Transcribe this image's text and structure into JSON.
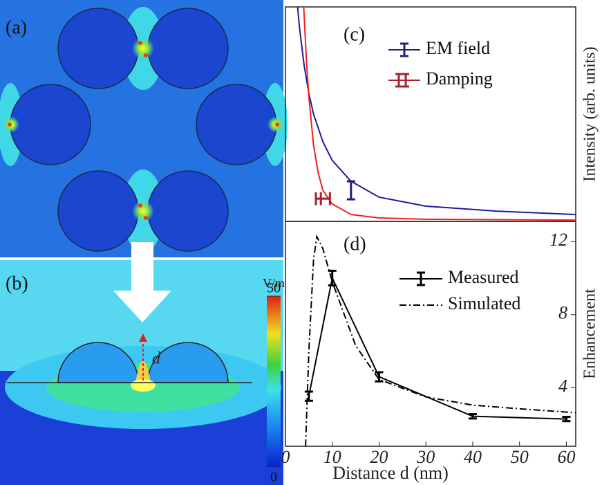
{
  "figure": {
    "panel_a": "(a)",
    "panel_b": "(b)",
    "gap_label": "d",
    "colorbar": {
      "unit": "V/m",
      "lim": [
        0,
        50
      ],
      "ticks": [
        0,
        50
      ]
    }
  },
  "chart_data": [
    {
      "type": "line",
      "panel_label": "(c)",
      "ylabel": "Intensity (arb. units)",
      "xlim": [
        0,
        62
      ],
      "ylim": [
        0,
        10
      ],
      "series": [
        {
          "name": "EM field",
          "color": "#1f1f7a",
          "line_color": "#1c1c9a",
          "x": [
            2.6,
            3,
            4,
            5,
            6,
            8,
            10,
            14,
            20,
            30,
            45,
            62
          ],
          "values": [
            10.0,
            9.03,
            7.26,
            5.97,
            5.0,
            3.71,
            2.84,
            1.87,
            1.13,
            0.71,
            0.48,
            0.32
          ],
          "point": {
            "x": 14,
            "value": 1.45,
            "error": 0.42
          }
        },
        {
          "name": "Damping",
          "color": "#a8202c",
          "line_color": "#ee2020",
          "x": [
            3.9,
            4.5,
            5,
            6,
            7,
            8,
            10,
            14,
            20,
            30,
            62
          ],
          "values": [
            10.0,
            7.42,
            5.81,
            3.55,
            2.26,
            1.45,
            0.81,
            0.32,
            0.16,
            0.1,
            0.06
          ],
          "point": {
            "x": 8,
            "value": 1.06,
            "error": 0.3,
            "xerror": 1.5
          }
        }
      ]
    },
    {
      "type": "line",
      "panel_label": "(d)",
      "xlabel": "Distance d (nm)",
      "ylabel": "Enhancement",
      "xlim": [
        0,
        62
      ],
      "ylim": [
        0.8,
        13.1
      ],
      "xticks": [
        0,
        10,
        20,
        30,
        40,
        50,
        60
      ],
      "yticks": [
        4,
        8,
        12
      ],
      "series": [
        {
          "name": "Measured",
          "color": "#000000",
          "style": "solid",
          "x": [
            5,
            10,
            20,
            40,
            60
          ],
          "values": [
            3.54,
            10.0,
            4.6,
            2.44,
            2.29
          ],
          "errors": [
            0.25,
            0.4,
            0.25,
            0.12,
            0.12
          ]
        },
        {
          "name": "Simulated",
          "color": "#000000",
          "style": "dashdot",
          "x": [
            4.3,
            5,
            6,
            6.7,
            8,
            10,
            15,
            20,
            30,
            40,
            50,
            60,
            62
          ],
          "values": [
            0.8,
            6.0,
            11.0,
            12.27,
            11.6,
            9.8,
            6.3,
            4.45,
            3.5,
            3.05,
            2.85,
            2.67,
            2.63
          ]
        }
      ]
    }
  ]
}
